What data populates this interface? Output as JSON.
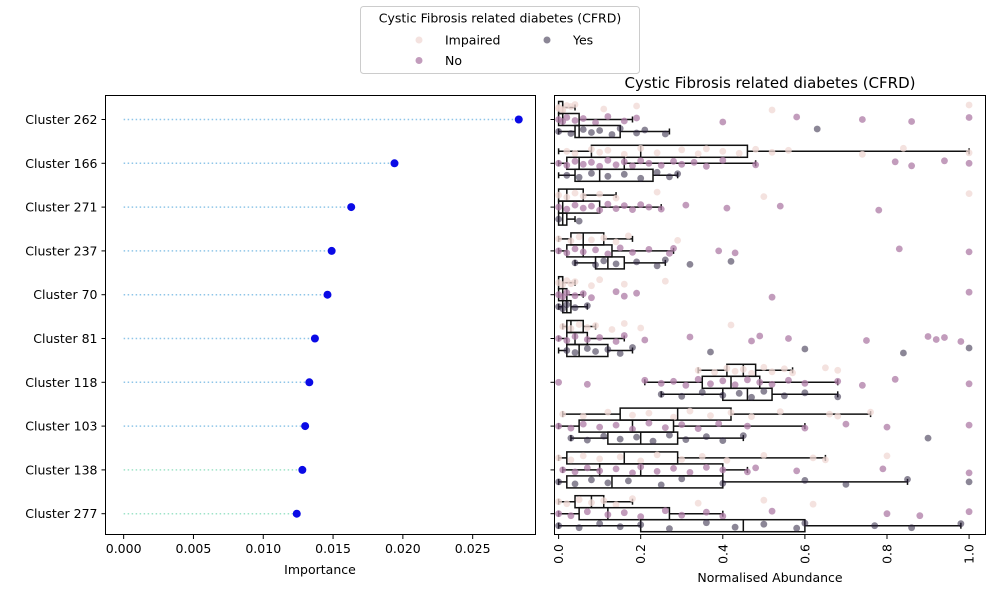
{
  "legend": {
    "title": "Cystic Fibrosis related diabetes (CFRD)",
    "entries": [
      {
        "label": "Impaired",
        "color": "#f0d8d4"
      },
      {
        "label": "No",
        "color": "#ad7ba5"
      },
      {
        "label": "Yes",
        "color": "#2c2240"
      }
    ]
  },
  "chart_data": [
    {
      "type": "lollipop",
      "xlabel": "Importance",
      "xlim": [
        -0.0013,
        0.0295
      ],
      "xticks": [
        "0.000",
        "0.005",
        "0.010",
        "0.015",
        "0.020",
        "0.025"
      ],
      "xtick_values": [
        0,
        0.005,
        0.01,
        0.015,
        0.02,
        0.025
      ],
      "categories": [
        "Cluster 262",
        "Cluster 166",
        "Cluster 271",
        "Cluster 237",
        "Cluster 70",
        "Cluster 81",
        "Cluster 118",
        "Cluster 103",
        "Cluster 138",
        "Cluster 277"
      ],
      "values": [
        0.0283,
        0.0194,
        0.0163,
        0.0149,
        0.0146,
        0.0137,
        0.0133,
        0.013,
        0.0128,
        0.0124
      ],
      "marker_color": "#0a0ae6",
      "stem_color": "#8ec5e8",
      "stem_color_end": "#9ee3c8"
    },
    {
      "type": "box_strip",
      "title": "Cystic Fibrosis related diabetes (CFRD)",
      "xlabel": "Normalised Abundance",
      "xlim": [
        -0.01,
        1.04
      ],
      "xticks": [
        "0.0",
        "0.2",
        "0.4",
        "0.6",
        "0.8",
        "1.0"
      ],
      "xtick_values": [
        0,
        0.2,
        0.4,
        0.6,
        0.8,
        1.0
      ],
      "hue_order": [
        "Impaired",
        "No",
        "Yes"
      ],
      "categories": [
        "Cluster 262",
        "Cluster 166",
        "Cluster 271",
        "Cluster 237",
        "Cluster 70",
        "Cluster 81",
        "Cluster 118",
        "Cluster 103",
        "Cluster 138",
        "Cluster 277"
      ],
      "boxes": [
        [
          [
            0,
            0,
            0.01,
            0.01,
            0.04
          ],
          [
            0,
            0,
            0.01,
            0.05,
            0.18
          ],
          [
            0,
            0.04,
            0.05,
            0.15,
            0.27
          ]
        ],
        [
          [
            0,
            0.08,
            0.2,
            0.46,
            1.0
          ],
          [
            0,
            0.02,
            0.05,
            0.16,
            0.48
          ],
          [
            0,
            0.04,
            0.1,
            0.23,
            0.29
          ]
        ],
        [
          [
            0,
            0,
            0.02,
            0.06,
            0.14
          ],
          [
            0,
            0,
            0.01,
            0.1,
            0.25
          ],
          [
            0,
            0,
            0.01,
            0.02,
            0.04
          ]
        ],
        [
          [
            0,
            0.03,
            0.06,
            0.11,
            0.18
          ],
          [
            0,
            0.02,
            0.06,
            0.13,
            0.28
          ],
          [
            0.04,
            0.09,
            0.12,
            0.16,
            0.26
          ]
        ],
        [
          [
            0,
            0,
            0.01,
            0.01,
            0.04
          ],
          [
            0,
            0,
            0.01,
            0.02,
            0.06
          ],
          [
            0,
            0.01,
            0.02,
            0.03,
            0.07
          ]
        ],
        [
          [
            0.01,
            0.02,
            0.03,
            0.06,
            0.09
          ],
          [
            0,
            0.02,
            0.04,
            0.07,
            0.16
          ],
          [
            0,
            0.02,
            0.05,
            0.12,
            0.18
          ]
        ],
        [
          [
            0.34,
            0.41,
            0.45,
            0.48,
            0.57
          ],
          [
            0.21,
            0.35,
            0.42,
            0.49,
            0.68
          ],
          [
            0.25,
            0.4,
            0.46,
            0.52,
            0.68
          ]
        ],
        [
          [
            0.01,
            0.15,
            0.29,
            0.42,
            0.76
          ],
          [
            0,
            0.05,
            0.18,
            0.28,
            0.6
          ],
          [
            0.03,
            0.12,
            0.2,
            0.29,
            0.45
          ]
        ],
        [
          [
            0,
            0.02,
            0.16,
            0.29,
            0.65
          ],
          [
            0.01,
            0.1,
            0.2,
            0.4,
            0.46
          ],
          [
            0,
            0.02,
            0.13,
            0.4,
            0.85
          ]
        ],
        [
          [
            0,
            0.04,
            0.08,
            0.11,
            0.18
          ],
          [
            0,
            0.05,
            0.12,
            0.27,
            0.4
          ],
          [
            0,
            0.2,
            0.45,
            0.6,
            0.98
          ]
        ]
      ],
      "points": [
        [
          [
            0.0,
            0.01,
            0.02,
            0.0,
            0.03,
            0.01,
            0.04,
            0.11,
            0.19,
            0.52,
            1.0
          ],
          [
            0.0,
            0.01,
            0.02,
            0.04,
            0.06,
            0.09,
            0.12,
            0.16,
            0.19,
            0.4,
            0.58,
            0.74,
            0.86,
            1.0
          ],
          [
            0.0,
            0.03,
            0.06,
            0.08,
            0.1,
            0.13,
            0.15,
            0.19,
            0.21,
            0.26,
            0.63
          ]
        ],
        [
          [
            0.02,
            0.04,
            0.08,
            0.1,
            0.12,
            0.16,
            0.2,
            0.24,
            0.3,
            0.34,
            0.36,
            0.4,
            0.44,
            0.48,
            0.52,
            0.56,
            0.74,
            0.84,
            1.0
          ],
          [
            0.0,
            0.02,
            0.04,
            0.06,
            0.08,
            0.1,
            0.12,
            0.14,
            0.16,
            0.18,
            0.2,
            0.22,
            0.25,
            0.28,
            0.3,
            0.33,
            0.36,
            0.4,
            0.48,
            0.82,
            0.86,
            0.94,
            1.0
          ],
          [
            0.02,
            0.05,
            0.08,
            0.12,
            0.16,
            0.2,
            0.24,
            0.27,
            0.29
          ]
        ],
        [
          [
            0.0,
            0.02,
            0.04,
            0.06,
            0.1,
            0.14,
            0.24,
            0.5,
            1.0
          ],
          [
            0.0,
            0.02,
            0.04,
            0.06,
            0.08,
            0.1,
            0.12,
            0.14,
            0.16,
            0.18,
            0.2,
            0.22,
            0.25,
            0.31,
            0.41,
            0.54,
            0.78
          ],
          [
            0.0,
            0.05
          ]
        ],
        [
          [
            0.0,
            0.03,
            0.05,
            0.08,
            0.11,
            0.14,
            0.17,
            0.29
          ],
          [
            0.0,
            0.02,
            0.04,
            0.06,
            0.09,
            0.12,
            0.15,
            0.18,
            0.22,
            0.27,
            0.28,
            0.39,
            0.43,
            0.83,
            1.0
          ],
          [
            0.04,
            0.09,
            0.11,
            0.14,
            0.19,
            0.24,
            0.26,
            0.32,
            0.42
          ]
        ],
        [
          [
            0.0,
            0.01,
            0.02,
            0.03,
            0.04,
            0.08,
            0.1,
            0.16,
            0.26
          ],
          [
            0.0,
            0.01,
            0.02,
            0.04,
            0.06,
            0.08,
            0.14,
            0.16,
            0.19,
            0.52,
            1.0
          ],
          [
            0.0,
            0.01,
            0.02,
            0.04,
            0.07
          ]
        ],
        [
          [
            0.01,
            0.03,
            0.05,
            0.07,
            0.09,
            0.13,
            0.16,
            0.2,
            0.42
          ],
          [
            0.0,
            0.02,
            0.04,
            0.07,
            0.1,
            0.14,
            0.16,
            0.21,
            0.32,
            0.47,
            0.49,
            0.56,
            0.75,
            0.9,
            0.92,
            0.94,
            0.98
          ],
          [
            0.02,
            0.04,
            0.07,
            0.09,
            0.12,
            0.15,
            0.18,
            0.37,
            0.6,
            0.84,
            1.0
          ]
        ],
        [
          [
            0.34,
            0.38,
            0.41,
            0.43,
            0.45,
            0.47,
            0.5,
            0.52,
            0.55,
            0.57,
            0.65,
            0.68
          ],
          [
            0.0,
            0.07,
            0.21,
            0.25,
            0.28,
            0.31,
            0.34,
            0.37,
            0.4,
            0.43,
            0.46,
            0.49,
            0.52,
            0.56,
            0.6,
            0.68,
            0.74,
            0.82,
            1.0
          ],
          [
            0.25,
            0.3,
            0.35,
            0.4,
            0.44,
            0.47,
            0.5,
            0.55,
            0.6,
            0.68
          ]
        ],
        [
          [
            0.01,
            0.06,
            0.12,
            0.18,
            0.22,
            0.28,
            0.32,
            0.37,
            0.42,
            0.47,
            0.54,
            0.66,
            0.68,
            0.76
          ],
          [
            0.0,
            0.03,
            0.06,
            0.1,
            0.14,
            0.18,
            0.22,
            0.26,
            0.3,
            0.34,
            0.39,
            0.46,
            0.6,
            0.7,
            0.8,
            1.0
          ],
          [
            0.03,
            0.07,
            0.11,
            0.15,
            0.19,
            0.23,
            0.27,
            0.31,
            0.36,
            0.4,
            0.45,
            0.9
          ]
        ],
        [
          [
            0.0,
            0.03,
            0.06,
            0.1,
            0.15,
            0.2,
            0.24,
            0.3,
            0.35,
            0.41,
            0.5,
            0.62,
            0.65,
            0.8
          ],
          [
            0.01,
            0.04,
            0.07,
            0.1,
            0.14,
            0.18,
            0.2,
            0.24,
            0.28,
            0.32,
            0.36,
            0.4,
            0.46,
            0.48,
            0.58,
            0.79,
            1.0
          ],
          [
            0.0,
            0.04,
            0.08,
            0.12,
            0.17,
            0.25,
            0.3,
            0.4,
            0.6,
            0.7,
            0.85,
            1.0
          ]
        ],
        [
          [
            0.0,
            0.02,
            0.05,
            0.08,
            0.11,
            0.14,
            0.18,
            0.34,
            0.5,
            0.62
          ],
          [
            0.0,
            0.03,
            0.07,
            0.12,
            0.16,
            0.2,
            0.26,
            0.3,
            0.36,
            0.4,
            0.52,
            0.8,
            0.88,
            1.0
          ],
          [
            0.0,
            0.05,
            0.1,
            0.15,
            0.2,
            0.27,
            0.36,
            0.43,
            0.5,
            0.58,
            0.6,
            0.77,
            0.86,
            0.98
          ]
        ]
      ]
    }
  ]
}
